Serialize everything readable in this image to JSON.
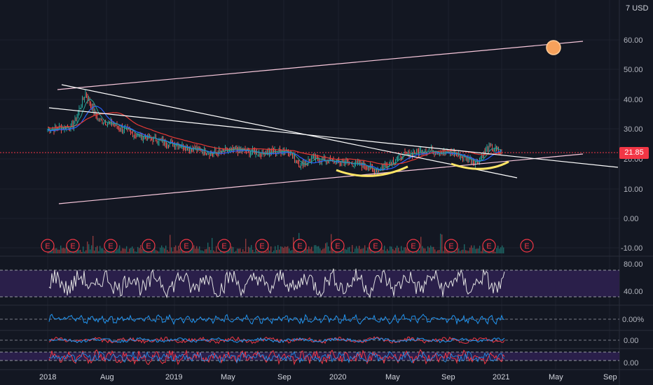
{
  "currency": {
    "prefix": "7",
    "code": "USD"
  },
  "last_price": "21.85",
  "price_axis": {
    "labels": [
      "60.00",
      "50.00",
      "40.00",
      "30.00",
      "20.00",
      "10.00",
      "0.00",
      "-10.00"
    ]
  },
  "time_axis": {
    "labels": [
      "2018",
      "Aug",
      "2019",
      "May",
      "Sep",
      "2020",
      "May",
      "Sep",
      "2021",
      "May",
      "Sep"
    ]
  },
  "earnings_marker": "E",
  "indicators": {
    "rsi": {
      "labels": [
        "80.00",
        "40.00"
      ],
      "band": [
        30,
        70
      ]
    },
    "momentum": {
      "labels": [
        "0.00%"
      ]
    },
    "macd": {
      "labels": [
        "0.00"
      ]
    },
    "stoch": {
      "labels": [
        "0.00"
      ]
    }
  },
  "colors": {
    "background": "#131722",
    "price_line": "#f23645",
    "candle_up": "#26a69a",
    "candle_down": "#ef5350",
    "ma_red": "#e53935",
    "ma_blue": "#2962ff",
    "trendline_white": "#ffffff",
    "channel_pink": "#f8c8dc",
    "highlight_yellow": "#ffe566",
    "target_orange": "#f6a15b",
    "rsi_band": "#2a1f4a",
    "momentum_blue": "#2196f3"
  },
  "chart_data": [
    {
      "type": "line",
      "title": "",
      "ylabel": "USD",
      "ylim": [
        -10,
        66
      ],
      "x": [
        "2018-01",
        "2018-03",
        "2018-04",
        "2018-05",
        "2018-06",
        "2018-08",
        "2018-10",
        "2018-12",
        "2019-02",
        "2019-04",
        "2019-06",
        "2019-08",
        "2019-09",
        "2019-10",
        "2019-12",
        "2020-02",
        "2020-03",
        "2020-05",
        "2020-07",
        "2020-09",
        "2020-11",
        "2020-12",
        "2021-01"
      ],
      "series": [
        {
          "values": [
            30,
            31,
            42,
            33,
            32,
            28,
            26,
            24,
            22,
            23,
            22,
            23,
            18,
            20,
            19,
            18,
            16,
            21,
            23,
            22,
            19,
            24,
            21.85
          ]
        }
      ],
      "last": 21.85
    },
    {
      "type": "bar",
      "title": "",
      "earnings_dates": [
        "2018-01",
        "2018-03",
        "2018-06",
        "2018-09",
        "2018-12",
        "2019-03",
        "2019-06",
        "2019-09",
        "2019-12",
        "2020-03",
        "2020-06",
        "2020-09",
        "2020-12",
        "2021-03"
      ]
    }
  ]
}
